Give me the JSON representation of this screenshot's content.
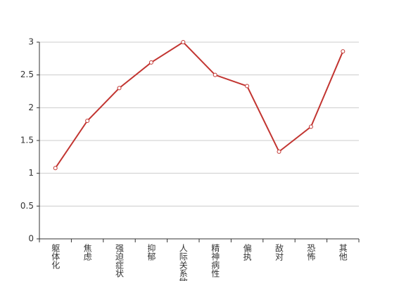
{
  "chart_data": {
    "type": "line",
    "categories": [
      "躯体化",
      "焦虑",
      "强迫症状",
      "抑郁",
      "人际关系敏感",
      "精神病性",
      "偏执",
      "敌对",
      "恐怖",
      "其他"
    ],
    "values": [
      1.08,
      1.8,
      2.3,
      2.69,
      3.0,
      2.5,
      2.33,
      1.33,
      1.71,
      2.86
    ],
    "color": "#c23531",
    "ylim": [
      0,
      3
    ],
    "yticks": [
      0,
      0.5,
      1,
      1.5,
      2,
      2.5,
      3
    ],
    "grid": true
  }
}
